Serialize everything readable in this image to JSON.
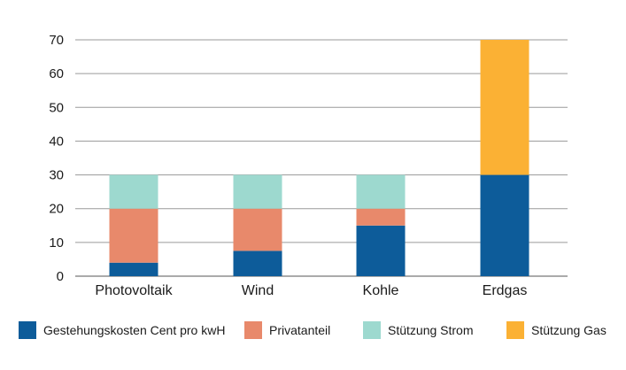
{
  "chart_data": {
    "type": "bar",
    "stacked": true,
    "categories": [
      "Photovoltaik",
      "Wind",
      "Kohle",
      "Erdgas"
    ],
    "series": [
      {
        "name": "Gestehungskosten Cent pro kwH",
        "color": "#0d5c9a",
        "values": [
          4,
          7.5,
          15,
          30
        ]
      },
      {
        "name": "Privatanteil",
        "color": "#e8896b",
        "values": [
          16,
          12.5,
          5,
          0
        ]
      },
      {
        "name": "Stützung Strom",
        "color": "#9dd9cf",
        "values": [
          10,
          10,
          10,
          0
        ]
      },
      {
        "name": "Stützung Gas",
        "color": "#fbb134",
        "values": [
          0,
          0,
          0,
          40
        ]
      }
    ],
    "ylim": [
      0,
      70
    ],
    "yticks": [
      "0",
      "10",
      "20",
      "30",
      "40",
      "50",
      "60",
      "70"
    ],
    "grid": true,
    "legend_position": "bottom"
  }
}
